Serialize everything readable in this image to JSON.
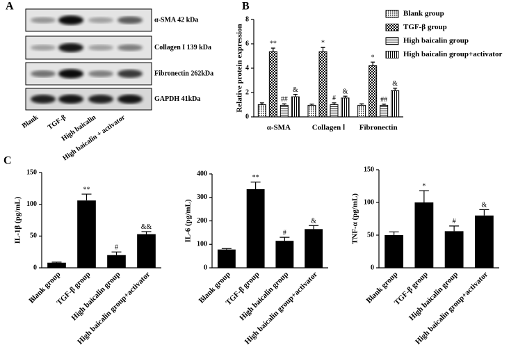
{
  "blot": {
    "label": "A",
    "proteins": [
      "α-SMA 42 kDa",
      "Collagen I 139 kDa",
      "Fibronectin 262kDa",
      "GAPDH 41kDa"
    ],
    "lanes": [
      "Blank",
      "TGF-β",
      "High baicalin",
      "High baicalin + activator"
    ]
  },
  "chart_data": [
    {
      "type": "grouped_bar",
      "panel": "B",
      "ylabel": "Relative protein expression",
      "categories": [
        "α-SMA",
        "Collagen Ⅰ",
        "Fibronectin"
      ],
      "ylim": [
        0,
        8
      ],
      "yticks": [
        0,
        2,
        4,
        6,
        8
      ],
      "legend": "right",
      "series": [
        {
          "name": "Blank group",
          "color": "#000000",
          "pattern": "dots",
          "values": [
            1.0,
            0.95,
            0.95
          ],
          "errors": [
            0.15,
            0.1,
            0.12
          ]
        },
        {
          "name": "TGF-β group",
          "color": "#000000",
          "pattern": "checker",
          "values": [
            5.35,
            5.35,
            4.2
          ],
          "errors": [
            0.3,
            0.35,
            0.3
          ],
          "markers": [
            "**",
            "*",
            "*"
          ]
        },
        {
          "name": "High baicalin group",
          "color": "#000000",
          "pattern": "horizontal",
          "values": [
            0.95,
            1.0,
            0.95
          ],
          "errors": [
            0.12,
            0.15,
            0.1
          ],
          "markers": [
            "##",
            "#",
            "##"
          ]
        },
        {
          "name": "High baicalin group+activator",
          "color": "#000000",
          "pattern": "vertical",
          "values": [
            1.65,
            1.55,
            2.15
          ],
          "errors": [
            0.2,
            0.15,
            0.2
          ],
          "markers": [
            "&",
            "&",
            "&"
          ]
        }
      ]
    },
    {
      "type": "bar",
      "panel": "C",
      "ylabel": "IL-1β (pg/mL)",
      "color": "#000000",
      "categories": [
        "Blank group",
        "TGF-β group",
        "High baicalin group",
        "High baicalin group+activator"
      ],
      "values": [
        8,
        106,
        20,
        53
      ],
      "errors": [
        1,
        10,
        5,
        4
      ],
      "markers": [
        null,
        "**",
        "#",
        "&&"
      ],
      "ylim": [
        0,
        150
      ],
      "yticks": [
        0,
        50,
        100,
        150
      ]
    },
    {
      "type": "bar",
      "ylabel": "IL-6 (pg/mL)",
      "color": "#000000",
      "categories": [
        "Blank group",
        "TGF-β group",
        "High baicalin group",
        "High baicalin group+activator"
      ],
      "values": [
        78,
        335,
        115,
        165
      ],
      "errors": [
        4,
        30,
        15,
        15
      ],
      "markers": [
        null,
        "**",
        "#",
        "&"
      ],
      "ylim": [
        0,
        400
      ],
      "yticks": [
        0,
        100,
        200,
        300,
        400
      ]
    },
    {
      "type": "bar",
      "ylabel": "TNF-α (pg/mL)",
      "color": "#000000",
      "categories": [
        "Blank group",
        "TGF-β group",
        "High baicalin group",
        "High baicalin group+activator"
      ],
      "values": [
        50,
        100,
        56,
        80
      ],
      "errors": [
        5,
        18,
        8,
        9
      ],
      "markers": [
        null,
        "*",
        "#",
        "&"
      ],
      "ylim": [
        0,
        150
      ],
      "yticks": [
        0,
        50,
        100,
        150
      ]
    }
  ]
}
